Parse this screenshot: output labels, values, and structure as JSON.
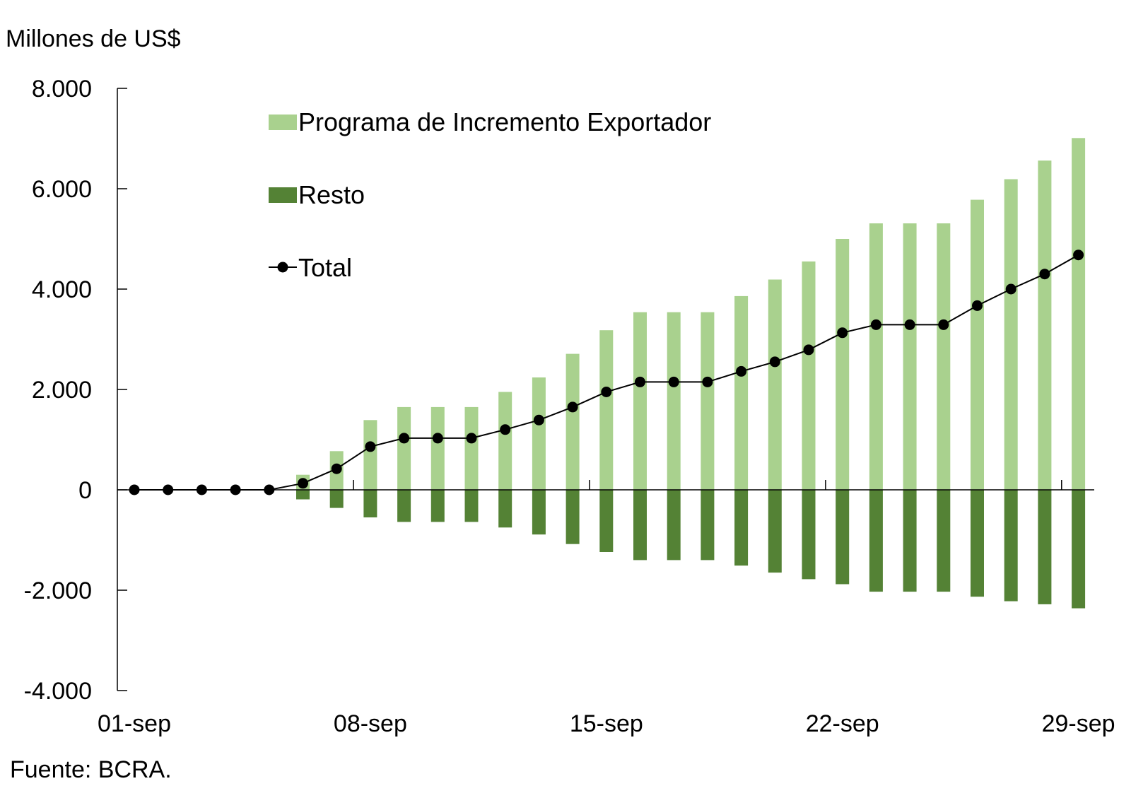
{
  "chart_data": {
    "type": "bar",
    "title": "",
    "ylabel": "Millones de US$",
    "xlabel": "",
    "source": "Fuente: BCRA.",
    "ylim": [
      -4000,
      8000
    ],
    "yticks": [
      8000,
      6000,
      4000,
      2000,
      0,
      -2000,
      -4000
    ],
    "ytick_labels": [
      "8.000",
      "6.000",
      "4.000",
      "2.000",
      "0",
      "-2.000",
      "-4.000"
    ],
    "xtick_labels": [
      {
        "label": "01-sep",
        "index": 0
      },
      {
        "label": "08-sep",
        "index": 7
      },
      {
        "label": "15-sep",
        "index": 14
      },
      {
        "label": "22-sep",
        "index": 21
      },
      {
        "label": "29-sep",
        "index": 28
      }
    ],
    "legend_position": "top-left",
    "categories": [
      "01-sep",
      "02-sep",
      "03-sep",
      "04-sep",
      "05-sep",
      "06-sep",
      "07-sep",
      "08-sep",
      "09-sep",
      "10-sep",
      "11-sep",
      "12-sep",
      "13-sep",
      "14-sep",
      "15-sep",
      "16-sep",
      "17-sep",
      "18-sep",
      "19-sep",
      "20-sep",
      "21-sep",
      "22-sep",
      "23-sep",
      "24-sep",
      "25-sep",
      "26-sep",
      "27-sep",
      "28-sep",
      "29-sep"
    ],
    "series": [
      {
        "name": "Programa de Incremento Exportador",
        "kind": "bar",
        "color": "#a9d18e",
        "values": [
          0,
          0,
          0,
          0,
          0,
          300,
          770,
          1390,
          1650,
          1650,
          1650,
          1950,
          2240,
          2710,
          3180,
          3540,
          3540,
          3540,
          3860,
          4190,
          4550,
          5000,
          5310,
          5310,
          5310,
          5780,
          6190,
          6560,
          7010
        ]
      },
      {
        "name": "Resto",
        "kind": "bar",
        "color": "#548235",
        "values": [
          0,
          0,
          0,
          0,
          0,
          -190,
          -360,
          -550,
          -640,
          -640,
          -640,
          -750,
          -890,
          -1080,
          -1240,
          -1400,
          -1400,
          -1400,
          -1510,
          -1650,
          -1780,
          -1880,
          -2030,
          -2030,
          -2030,
          -2130,
          -2220,
          -2280,
          -2360
        ]
      },
      {
        "name": "Total",
        "kind": "line",
        "color": "#000000",
        "values": [
          0,
          0,
          0,
          0,
          0,
          130,
          420,
          860,
          1030,
          1030,
          1030,
          1200,
          1390,
          1650,
          1950,
          2150,
          2150,
          2150,
          2360,
          2550,
          2790,
          3130,
          3290,
          3290,
          3290,
          3670,
          4000,
          4300,
          4680
        ]
      }
    ]
  }
}
